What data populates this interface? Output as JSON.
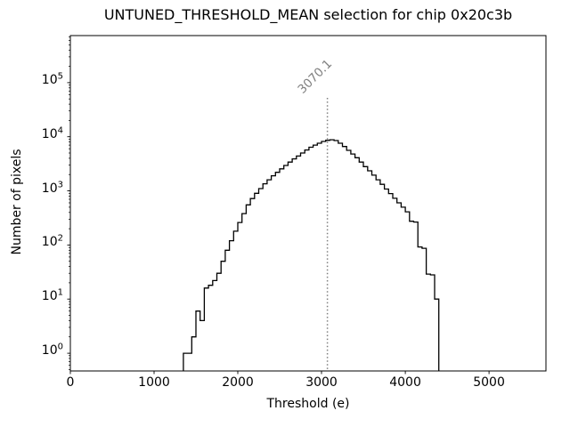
{
  "title": "UNTUNED_THRESHOLD_MEAN selection for chip 0x20c3b",
  "chart_data": {
    "type": "histogram-step",
    "title": "UNTUNED_THRESHOLD_MEAN selection for chip 0x20c3b",
    "xlabel": "Threshold (e)",
    "ylabel": "Number of pixels",
    "xlim": [
      0,
      5680
    ],
    "ylim": [
      0.47,
      740000
    ],
    "yscale": "log",
    "grid": false,
    "legend": null,
    "x_ticks": [
      0,
      1000,
      2000,
      3000,
      4000,
      5000
    ],
    "y_ticks": [
      1,
      10,
      100,
      1000,
      10000,
      100000
    ],
    "bin_start": 1350,
    "bin_width": 50,
    "counts": [
      1,
      1,
      2,
      6,
      4,
      16,
      18,
      22,
      30,
      50,
      80,
      120,
      180,
      260,
      380,
      550,
      720,
      900,
      1100,
      1350,
      1600,
      1900,
      2200,
      2550,
      2950,
      3400,
      3900,
      4400,
      5000,
      5700,
      6400,
      7000,
      7600,
      8200,
      8600,
      8800,
      8500,
      7600,
      6600,
      5600,
      4800,
      4100,
      3400,
      2800,
      2350,
      1950,
      1600,
      1320,
      1080,
      890,
      730,
      600,
      500,
      410,
      275,
      265,
      92,
      87,
      29,
      28,
      10
    ],
    "line_color": "#000000",
    "vline": {
      "x": 3070.1,
      "label": "3070.1",
      "color": "#808080",
      "style": "dotted"
    },
    "background": "#ffffff"
  }
}
